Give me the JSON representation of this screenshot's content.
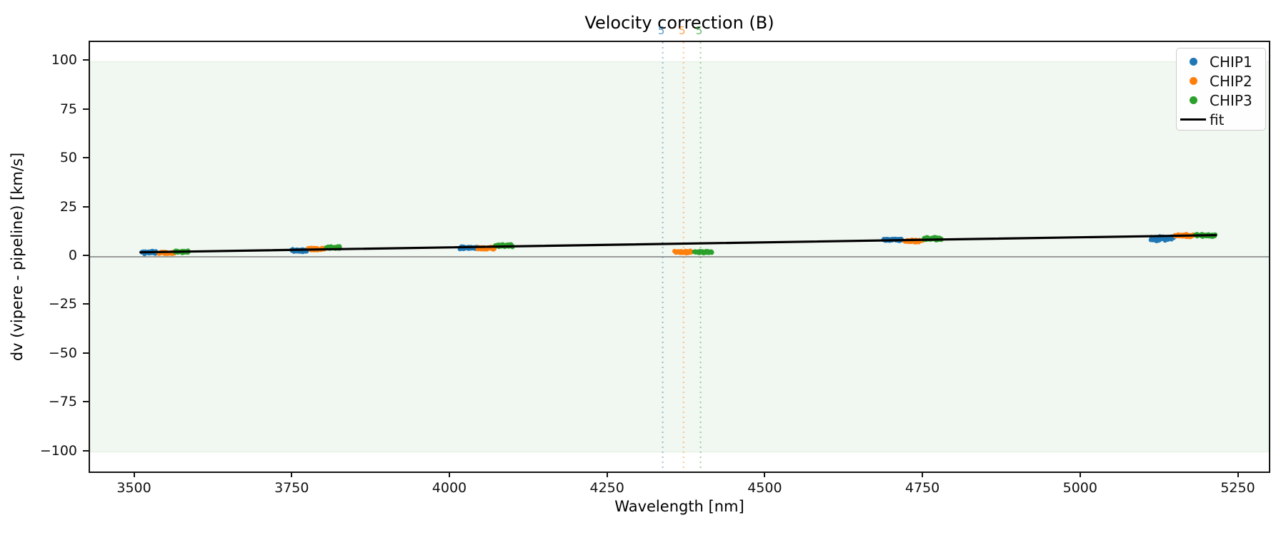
{
  "figure": {
    "title": "Velocity correction (B)",
    "xlabel": "Wavelength [nm]",
    "ylabel": "dv (vipere - pipeline) [km/s]"
  },
  "colors": {
    "chip1": "#1f77b4",
    "chip2": "#ff7f0e",
    "chip3": "#2ca02c",
    "fit": "#000000",
    "band_fill": "#f1f7f1",
    "band_edge": "#e2efe2",
    "zero_line": "#7f7f7f",
    "spine": "#141414"
  },
  "legend": {
    "entries": [
      {
        "label": "CHIP1",
        "color": "#1f77b4",
        "marker": "dot"
      },
      {
        "label": "CHIP2",
        "color": "#ff7f0e",
        "marker": "dot"
      },
      {
        "label": "CHIP3",
        "color": "#2ca02c",
        "marker": "dot"
      },
      {
        "label": "fit",
        "color": "#000000",
        "marker": "line"
      }
    ]
  },
  "chart_data": {
    "type": "scatter",
    "title": "Velocity correction (B)",
    "xlabel": "Wavelength [nm]",
    "ylabel": "dv (vipere - pipeline) [km/s]",
    "xlim": [
      3428,
      5297
    ],
    "ylim": [
      -110,
      110
    ],
    "x_ticks": [
      3500,
      3750,
      4000,
      4250,
      4500,
      4750,
      5000,
      5250
    ],
    "y_ticks": [
      100,
      75,
      50,
      25,
      0,
      -25,
      -50,
      -75,
      -100
    ],
    "grid": false,
    "legend_position": "upper right",
    "shaded_band": {
      "dv_min": -100,
      "dv_max": 100
    },
    "zero_line_dv": 0,
    "series": [
      {
        "name": "CHIP1",
        "color": "#1f77b4",
        "clusters": [
          {
            "wl_min": 3510,
            "wl_max": 3536,
            "dv": 2.2,
            "spread": 0.5
          },
          {
            "wl_min": 3746,
            "wl_max": 3772,
            "dv": 3.2,
            "spread": 0.5
          },
          {
            "wl_min": 4014,
            "wl_max": 4042,
            "dv": 4.6,
            "spread": 0.5
          },
          {
            "wl_min": 4684,
            "wl_max": 4716,
            "dv": 8.7,
            "spread": 0.5
          },
          {
            "wl_min": 5110,
            "wl_max": 5146,
            "dv": 9.3,
            "spread": 0.9
          }
        ]
      },
      {
        "name": "CHIP2",
        "color": "#ff7f0e",
        "clusters": [
          {
            "wl_min": 3537,
            "wl_max": 3562,
            "dv": 2.0,
            "spread": 0.5
          },
          {
            "wl_min": 3774,
            "wl_max": 3800,
            "dv": 4.0,
            "spread": 0.5
          },
          {
            "wl_min": 4042,
            "wl_max": 4070,
            "dv": 4.4,
            "spread": 0.5
          },
          {
            "wl_min": 4354,
            "wl_max": 4382,
            "dv": 2.5,
            "spread": 0.4
          },
          {
            "wl_min": 4718,
            "wl_max": 4748,
            "dv": 8.0,
            "spread": 0.5
          },
          {
            "wl_min": 5147,
            "wl_max": 5178,
            "dv": 10.8,
            "spread": 0.5
          }
        ]
      },
      {
        "name": "CHIP3",
        "color": "#2ca02c",
        "clusters": [
          {
            "wl_min": 3563,
            "wl_max": 3585,
            "dv": 2.6,
            "spread": 0.5
          },
          {
            "wl_min": 3802,
            "wl_max": 3825,
            "dv": 4.6,
            "spread": 0.5
          },
          {
            "wl_min": 4070,
            "wl_max": 4098,
            "dv": 5.7,
            "spread": 0.5
          },
          {
            "wl_min": 4386,
            "wl_max": 4414,
            "dv": 2.5,
            "spread": 0.4
          },
          {
            "wl_min": 4750,
            "wl_max": 4778,
            "dv": 9.3,
            "spread": 0.5
          },
          {
            "wl_min": 5180,
            "wl_max": 5212,
            "dv": 11.0,
            "spread": 0.5
          }
        ]
      }
    ],
    "fit_line": {
      "label": "fit",
      "color": "#000000",
      "points": [
        [
          3508,
          2.3
        ],
        [
          5213,
          11.1
        ]
      ]
    },
    "order_markers": [
      {
        "label": "5",
        "wavelength": 4336,
        "series": "CHIP1",
        "color": "#1f77b4"
      },
      {
        "label": "5",
        "wavelength": 4369,
        "series": "CHIP2",
        "color": "#ff7f0e"
      },
      {
        "label": "5",
        "wavelength": 4396,
        "series": "CHIP3",
        "color": "#2ca02c"
      }
    ]
  }
}
